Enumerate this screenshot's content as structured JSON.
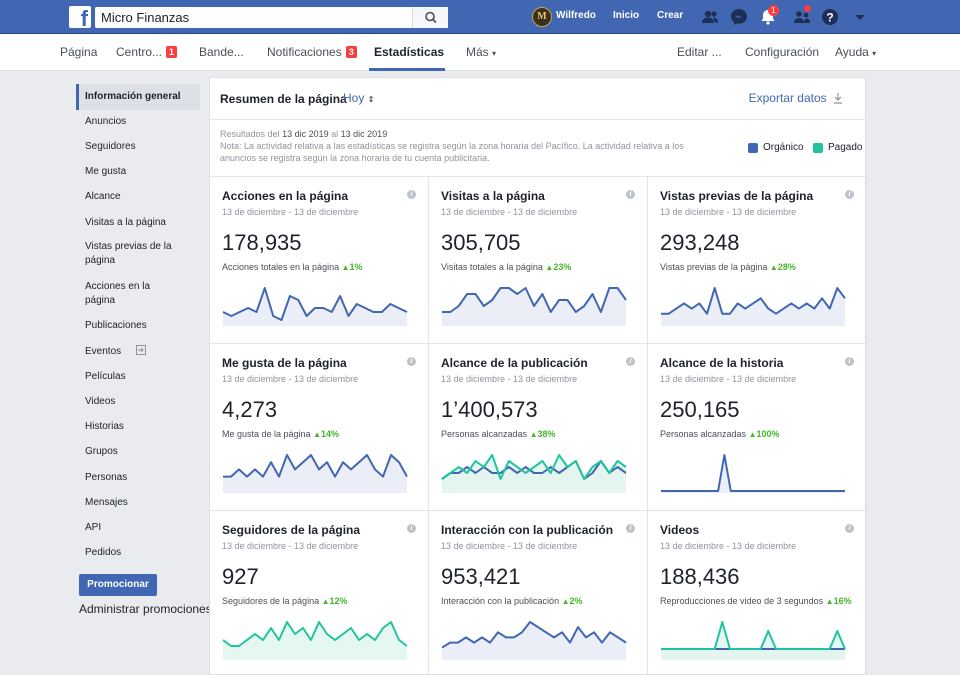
{
  "topbar": {
    "search_value": "Micro Finanzas",
    "avatar_letter": "M",
    "user_name": "Wilfredo",
    "home_label": "Inicio",
    "create_label": "Crear",
    "notif_count": "1"
  },
  "pagenav": {
    "items": [
      {
        "label": "Página"
      },
      {
        "label": "Centro...",
        "badge": "1"
      },
      {
        "label": "Bande..."
      },
      {
        "label": "Notificaciones",
        "badge": "3"
      },
      {
        "label": "Estadísticas"
      },
      {
        "label": "Más"
      },
      {
        "label": "Editar ..."
      },
      {
        "label": "Configuración"
      },
      {
        "label": "Ayuda"
      }
    ]
  },
  "sidebar": {
    "items": [
      {
        "label": "Información general"
      },
      {
        "label": "Anuncios"
      },
      {
        "label": "Seguidores"
      },
      {
        "label": "Me gusta"
      },
      {
        "label": "Alcance"
      },
      {
        "label": "Visitas a la página"
      },
      {
        "label": "Vistas previas de la página"
      },
      {
        "label": "Acciones en la página"
      },
      {
        "label": "Publicaciones"
      },
      {
        "label": "Eventos"
      },
      {
        "label": "Películas"
      },
      {
        "label": "Videos"
      },
      {
        "label": "Historias"
      },
      {
        "label": "Grupos"
      },
      {
        "label": "Personas"
      },
      {
        "label": "Mensajes"
      },
      {
        "label": "API"
      },
      {
        "label": "Pedidos"
      }
    ],
    "promote_label": "Promocionar",
    "manage_promotions": "Administrar promociones"
  },
  "panel": {
    "title": "Resumen de la página",
    "range": "Hoy",
    "export_label": "Exportar datos",
    "results_prefix": "Resultados del",
    "results_from": "13 dic 2019",
    "results_mid": "al",
    "results_to": "13 dic 2019",
    "note": "Nota: La actividad relativa a las estadísticas se registra según la zona horaria del Pacífico. La actividad relativa a los anuncios se registra según la zona horaria de tu cuenta publicitaria.",
    "legend": [
      {
        "label": "Orgánico",
        "color": "#4267b2"
      },
      {
        "label": "Pagado",
        "color": "#20c5a0"
      }
    ]
  },
  "colors": {
    "organic": "#4267b2",
    "paid": "#20c5a0",
    "fill_organic": "#e9ecf5",
    "fill_paid": "#e3f5f0"
  },
  "cards": [
    {
      "title": "Acciones en la página",
      "date": "13 de diciembre - 13 de diciembre",
      "value": "178,935",
      "sub": "Acciones totales en la página",
      "change": "1%",
      "organic": [
        3,
        2,
        3,
        4,
        3,
        9,
        2,
        1,
        7,
        6,
        2,
        4,
        4,
        3,
        7,
        2,
        5,
        4,
        3,
        3,
        5,
        4,
        3
      ]
    },
    {
      "title": "Visitas a la página",
      "date": "13 de diciembre - 13 de diciembre",
      "value": "305,705",
      "sub": "Visitas totales a la página",
      "change": "23%",
      "organic": [
        2,
        2,
        3,
        5,
        5,
        3,
        4,
        6,
        6,
        5,
        6,
        3,
        5,
        2,
        4,
        4,
        2,
        3,
        5,
        2,
        6,
        6,
        4
      ]
    },
    {
      "title": "Vistas previas de la página",
      "date": "13 de diciembre - 13 de diciembre",
      "value": "293,248",
      "sub": "Vistas previas de la página",
      "change": "28%",
      "organic": [
        2,
        2,
        3,
        4,
        3,
        4,
        2,
        7,
        2,
        2,
        4,
        3,
        4,
        5,
        3,
        2,
        3,
        4,
        3,
        4,
        3,
        5,
        3,
        7,
        5
      ]
    },
    {
      "title": "Me gusta de la página",
      "date": "13 de diciembre - 13 de diciembre",
      "value": "4,273",
      "sub": "Me gusta de la página",
      "change": "14%",
      "organic": [
        2,
        2,
        3,
        2,
        3,
        2,
        4,
        2,
        5,
        3,
        4,
        5,
        3,
        4,
        2,
        4,
        3,
        4,
        5,
        3,
        2,
        5,
        4,
        2
      ]
    },
    {
      "title": "Alcance de la publicación",
      "date": "13 de diciembre - 13 de diciembre",
      "value": "1’400,573",
      "sub": "Personas alcanzadas",
      "change": "38%",
      "organic": [
        2,
        3,
        3,
        4,
        3,
        4,
        3,
        3,
        4,
        3,
        4,
        3,
        3,
        4,
        3,
        4,
        5,
        2,
        3,
        5,
        3,
        4,
        3
      ],
      "paid": [
        2,
        3,
        4,
        3,
        5,
        4,
        6,
        2,
        5,
        4,
        3,
        4,
        5,
        3,
        6,
        4,
        5,
        2,
        4,
        5,
        3,
        5,
        4
      ]
    },
    {
      "title": "Alcance de la historia",
      "date": "13 de diciembre - 13 de diciembre",
      "value": "250,165",
      "sub": "Personas alcanzadas",
      "change": "100%",
      "organic": [
        0,
        0,
        0,
        0,
        0,
        0,
        0,
        0,
        0,
        0,
        9,
        0,
        0,
        0,
        0,
        0,
        0,
        0,
        0,
        0,
        0,
        0,
        0,
        0,
        0,
        0,
        0,
        0,
        0,
        0
      ]
    },
    {
      "title": "Seguidores de la página",
      "date": "13 de diciembre - 13 de diciembre",
      "value": "927",
      "sub": "Seguidores de la página",
      "change": "12%",
      "paid": [
        3,
        2,
        2,
        3,
        4,
        3,
        5,
        3,
        6,
        4,
        5,
        3,
        6,
        4,
        3,
        4,
        5,
        3,
        4,
        3,
        5,
        6,
        3,
        2
      ]
    },
    {
      "title": "Interacción con la publicación",
      "date": "13 de diciembre - 13 de diciembre",
      "value": "953,421",
      "sub": "Interacción con la publicación",
      "change": "2%",
      "organic": [
        2,
        3,
        3,
        4,
        3,
        4,
        3,
        5,
        4,
        4,
        5,
        7,
        6,
        5,
        4,
        5,
        3,
        6,
        4,
        5,
        3,
        5,
        4,
        3
      ]
    },
    {
      "title": "Videos",
      "date": "13 de diciembre - 13 de diciembre",
      "value": "188,436",
      "sub": "Reproducciones de video de 3 segundos",
      "change": "16%",
      "organic": [
        1,
        1,
        1,
        1,
        1,
        1,
        1,
        1,
        1,
        1,
        1,
        1,
        1,
        1,
        1,
        1,
        1,
        1,
        1,
        1,
        1,
        1,
        1,
        1,
        1
      ],
      "paid": [
        1,
        1,
        1,
        1,
        1,
        1,
        1,
        1,
        4,
        1,
        1,
        1,
        1,
        1,
        3,
        1,
        1,
        1,
        1,
        1,
        1,
        1,
        1,
        3,
        1
      ]
    }
  ]
}
